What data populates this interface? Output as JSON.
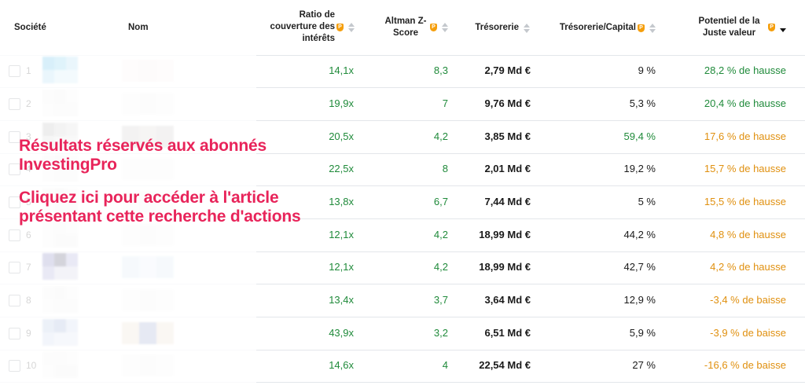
{
  "headers": {
    "societe": "Société",
    "nom": "Nom",
    "ratio": "Ratio de couverture des intérêts",
    "altman": "Altman Z-Score",
    "tresorerie": "Trésorerie",
    "tresorerie_capital": "Trésorerie/Capital",
    "potentiel": "Potentiel de la Juste valeur"
  },
  "rows": [
    {
      "n": "1",
      "ratio": "14,1x",
      "altman": "8,3",
      "tresorerie": "2,79 Md €",
      "tc": "9 %",
      "potentiel": "28,2 % de hausse",
      "pot_color": "green"
    },
    {
      "n": "2",
      "ratio": "19,9x",
      "altman": "7",
      "tresorerie": "9,76 Md €",
      "tc": "5,3 %",
      "potentiel": "20,4 % de hausse",
      "pot_color": "green"
    },
    {
      "n": "3",
      "ratio": "20,5x",
      "altman": "4,2",
      "tresorerie": "3,85 Md €",
      "tc": "59,4 %",
      "potentiel": "17,6 % de hausse",
      "pot_color": "orange"
    },
    {
      "n": "4",
      "ratio": "22,5x",
      "altman": "8",
      "tresorerie": "2,01 Md €",
      "tc": "19,2 %",
      "potentiel": "15,7 % de hausse",
      "pot_color": "orange"
    },
    {
      "n": "5",
      "ratio": "13,8x",
      "altman": "6,7",
      "tresorerie": "7,44 Md €",
      "tc": "5 %",
      "potentiel": "15,5 % de hausse",
      "pot_color": "orange"
    },
    {
      "n": "6",
      "ratio": "12,1x",
      "altman": "4,2",
      "tresorerie": "18,99 Md €",
      "tc": "44,2 %",
      "potentiel": "4,8 % de hausse",
      "pot_color": "orange"
    },
    {
      "n": "7",
      "ratio": "12,1x",
      "altman": "4,2",
      "tresorerie": "18,99 Md €",
      "tc": "42,7 %",
      "potentiel": "4,2 % de hausse",
      "pot_color": "orange"
    },
    {
      "n": "8",
      "ratio": "13,4x",
      "altman": "3,7",
      "tresorerie": "3,64 Md €",
      "tc": "12,9 %",
      "potentiel": "-3,4 % de baisse",
      "pot_color": "orange"
    },
    {
      "n": "9",
      "ratio": "43,9x",
      "altman": "3,2",
      "tresorerie": "6,51 Md €",
      "tc": "5,9 %",
      "potentiel": "-3,9 % de baisse",
      "pot_color": "orange"
    },
    {
      "n": "10",
      "ratio": "14,6x",
      "altman": "4",
      "tresorerie": "22,54 Md €",
      "tc": "27 %",
      "potentiel": "-16,6 % de baisse",
      "pot_color": "orange"
    }
  ],
  "promo": {
    "line1": "Résultats réservés aux abonnés",
    "line2": "InvestingPro",
    "line3": "Cliquez ici pour accéder à l'article",
    "line4": "présentant cette recherche d'actions"
  },
  "colors": {
    "green": "#1f8a3a",
    "orange": "#e0900f",
    "promo": "#e8245a",
    "pro_badge": "#f59e0b"
  }
}
